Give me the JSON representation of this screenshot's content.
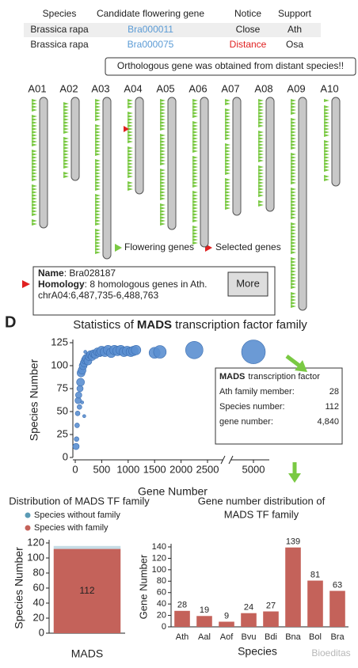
{
  "table": {
    "headers": [
      "Species",
      "Candidate flowering gene",
      "Notice",
      "Support"
    ],
    "rows": [
      [
        "Brassica rapa",
        "Bra000011",
        "Close",
        "Ath"
      ],
      [
        "Brassica rapa",
        "Bra000075",
        "Distance",
        "Osa"
      ]
    ]
  },
  "tooltip": "Orthologous gene was obtained from distant species!!",
  "chromosomes": [
    "A01",
    "A02",
    "A03",
    "A04",
    "A05",
    "A06",
    "A07",
    "A08",
    "A09",
    "A10"
  ],
  "legend": [
    "Flowering genes",
    "Selected genes"
  ],
  "info": {
    "name_label": "Name",
    "name": ": Bra028187",
    "homology_label": "Homology",
    "homology": ": 8 homologous genes in Ath.",
    "location": "chrA04:6,487,735-6,488,763",
    "button": "More"
  },
  "panel_label": "D",
  "watermark": "Bioeditas",
  "chart_data": [
    {
      "type": "scatter",
      "title_parts": [
        "Statistics of",
        "MADS",
        "transcription factor family"
      ],
      "x_label": "Gene Number",
      "y_label": "Species Number",
      "color": "#5b8fd0",
      "x": [
        15,
        25,
        35,
        45,
        55,
        65,
        80,
        90,
        100,
        110,
        130,
        150,
        170,
        190,
        210,
        240,
        260,
        290,
        320,
        350,
        380,
        420,
        460,
        500,
        560,
        620,
        680,
        740,
        800,
        860,
        920,
        980,
        1050,
        1100,
        1150,
        1500,
        1600,
        2250,
        5000,
        170,
        130,
        190
      ],
      "values": [
        12,
        20,
        35,
        48,
        62,
        68,
        55,
        75,
        82,
        92,
        95,
        100,
        103,
        106,
        108,
        105,
        110,
        112,
        110,
        113,
        112,
        115,
        114,
        116,
        115,
        117,
        114,
        117,
        116,
        117,
        115,
        116,
        115,
        116,
        117,
        114,
        115,
        117,
        115,
        45,
        60,
        115
      ],
      "sizes": [
        4,
        3,
        3,
        3,
        4,
        4,
        3,
        4,
        5,
        5,
        5,
        5,
        5,
        5,
        5,
        5,
        5,
        5,
        5,
        5,
        5,
        5,
        5,
        6,
        6,
        6,
        6,
        6,
        6,
        6,
        6,
        6,
        6,
        6,
        6,
        7,
        8,
        11,
        15,
        2,
        2,
        2
      ],
      "xlim": [
        0,
        5000
      ],
      "ylim": [
        0,
        125
      ],
      "xticks": [
        0,
        500,
        1000,
        1500,
        2000,
        2500,
        5000
      ],
      "yticks": [
        0,
        25,
        50,
        75,
        100,
        125
      ],
      "annotation": {
        "title_parts": [
          "MADS",
          "transcription factor"
        ],
        "rows": [
          [
            "Ath family member:",
            "28"
          ],
          [
            "Species number:",
            "112"
          ],
          [
            "gene number:",
            "4,840"
          ]
        ]
      }
    },
    {
      "type": "stacked_bar",
      "title": "Distribution of MADS TF family",
      "categories": [
        "MADS"
      ],
      "series": [
        {
          "name": "Species without family",
          "color": "#5b9bb5",
          "values": [
            4
          ]
        },
        {
          "name": "Species with family",
          "color": "#c4625a",
          "values": [
            112
          ]
        }
      ],
      "y_label": "Species Number",
      "ylim": [
        0,
        120
      ],
      "yticks": [
        0,
        20,
        40,
        60,
        80,
        100,
        120
      ]
    },
    {
      "type": "bar",
      "title_lines": [
        "Gene number distribution of",
        "MADS TF family"
      ],
      "categories": [
        "Ath",
        "Aal",
        "Aof",
        "Bvu",
        "Bdi",
        "Bna",
        "Bol",
        "Bra"
      ],
      "values": [
        28,
        19,
        9,
        24,
        27,
        139,
        81,
        63
      ],
      "color": "#c4625a",
      "x_label": "Species",
      "y_label": "Gene Number",
      "ylim": [
        0,
        140
      ],
      "yticks": [
        0,
        20,
        40,
        60,
        80,
        100,
        120,
        140
      ],
      "data_labels": true
    }
  ]
}
